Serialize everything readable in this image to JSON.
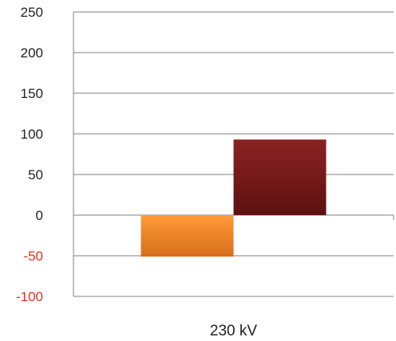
{
  "chart_data": {
    "type": "bar",
    "categories": [
      "230 kV"
    ],
    "series": [
      {
        "values": [
          -51
        ],
        "color": "#ee7d22"
      },
      {
        "values": [
          93
        ],
        "color": "#7b1a1a"
      }
    ],
    "y_ticks": [
      250,
      200,
      150,
      100,
      50,
      0,
      -50,
      -100
    ],
    "y_tick_labels": [
      "250",
      "200",
      "150",
      "100",
      "50",
      "0",
      "-50",
      "-100"
    ],
    "ylim": [
      -100,
      250
    ],
    "grid": true,
    "negative_tick_color": "#e0301e",
    "positive_tick_color": "#222222",
    "gridline_color": "#808080"
  }
}
